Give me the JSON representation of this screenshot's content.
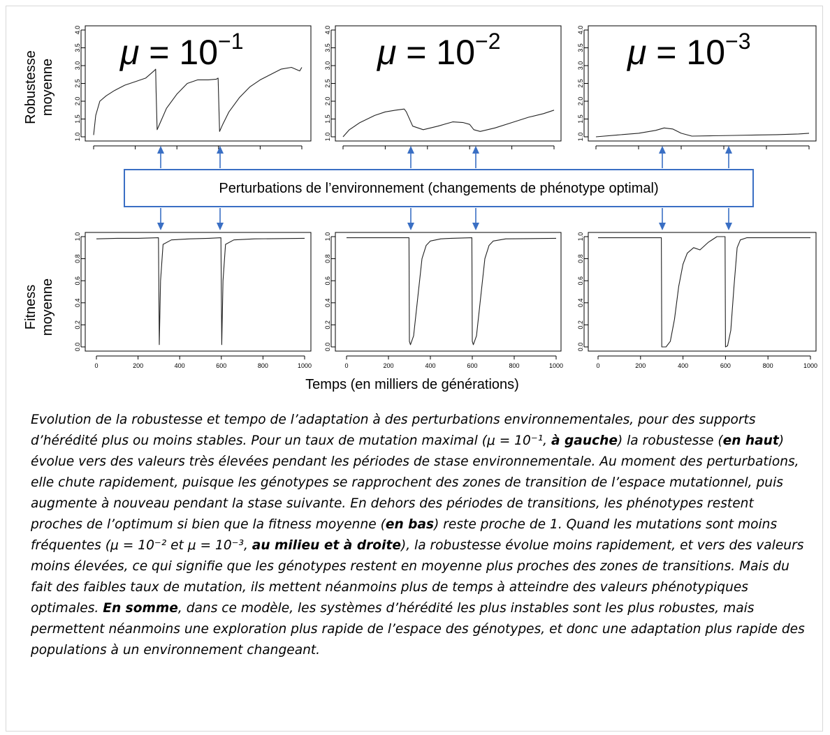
{
  "row_labels": {
    "top": [
      "Robustesse",
      "moyenne"
    ],
    "bottom": [
      "Fitness",
      "moyenne"
    ]
  },
  "perturbation_label": "Perturbations de l’environnement (changements de phénotype optimal)",
  "x_axis_label": "Temps (en milliers de générations)",
  "mu_labels": [
    {
      "base": "μ = 10",
      "exp": "−1"
    },
    {
      "base": "μ = 10",
      "exp": "−2"
    },
    {
      "base": "μ = 10",
      "exp": "−3"
    }
  ],
  "caption_segments": [
    {
      "text": "Evolution de la robustesse et tempo de l’adaptation à des perturbations environnementales, pour des supports d’hérédité plus ou moins stables. Pour un taux de mutation maximal (",
      "bold": false
    },
    {
      "text": "μ = 10⁻¹",
      "bold": false
    },
    {
      "text": ", ",
      "bold": false
    },
    {
      "text": "à gauche",
      "bold": true
    },
    {
      "text": ") la robustesse (",
      "bold": false
    },
    {
      "text": "en haut",
      "bold": true
    },
    {
      "text": ") évolue vers des valeurs très élevées pendant les périodes de stase environnementale. Au moment des perturbations, elle chute rapidement, puisque les génotypes se rapprochent des zones de transition de l’espace mutationnel, puis augmente à nouveau pendant la stase suivante. En dehors des périodes de transitions, les phénotypes restent proches de l’optimum si bien que la fitness moyenne (",
      "bold": false
    },
    {
      "text": "en bas",
      "bold": true
    },
    {
      "text": ") reste proche de 1. Quand les mutations sont moins fréquentes (",
      "bold": false
    },
    {
      "text": "μ = 10⁻²",
      "bold": false
    },
    {
      "text": " et ",
      "bold": false
    },
    {
      "text": "μ = 10⁻³",
      "bold": false
    },
    {
      "text": ", ",
      "bold": false
    },
    {
      "text": "au milieu et à droite",
      "bold": true
    },
    {
      "text": "), la robustesse évolue moins rapidement, et vers des valeurs moins élevées, ce qui signifie que les génotypes restent en moyenne plus proches des zones de transitions. Mais du fait des faibles taux de mutation, ils mettent néanmoins plus de temps à atteindre des valeurs phénotypiques optimales. ",
      "bold": false
    },
    {
      "text": "En somme",
      "bold": true
    },
    {
      "text": ", dans ce modèle, les systèmes d’hérédité les plus instables sont les plus robustes, mais permettent néanmoins une exploration plus rapide de l’espace des génotypes, et donc une adaptation plus rapide des populations à un environnement changeant.",
      "bold": false
    }
  ],
  "colors": {
    "line": "#222222",
    "arrow": "#3a6fc4",
    "box": "#3a6fc4"
  },
  "chart_data": [
    {
      "type": "line",
      "panel": "robustesse mu=10^-1",
      "xlim": [
        0,
        1000
      ],
      "ylim": [
        1.0,
        4.0
      ],
      "yticks": [
        "1.0",
        "1.5",
        "2.0",
        "2.5",
        "3.0",
        "3.5",
        "4.0"
      ],
      "x": [
        0,
        10,
        30,
        60,
        100,
        150,
        200,
        250,
        290,
        298,
        300,
        305,
        320,
        350,
        400,
        450,
        500,
        550,
        590,
        598,
        600,
        605,
        620,
        650,
        700,
        750,
        800,
        850,
        900,
        950,
        990,
        1000
      ],
      "y": [
        1.05,
        1.6,
        2.0,
        2.15,
        2.3,
        2.45,
        2.55,
        2.65,
        2.85,
        2.9,
        2.3,
        1.2,
        1.4,
        1.8,
        2.2,
        2.5,
        2.6,
        2.6,
        2.62,
        2.65,
        2.2,
        1.15,
        1.35,
        1.7,
        2.1,
        2.4,
        2.6,
        2.75,
        2.9,
        2.95,
        2.85,
        2.95
      ]
    },
    {
      "type": "line",
      "panel": "robustesse mu=10^-2",
      "xlim": [
        0,
        1000
      ],
      "ylim": [
        1.0,
        4.0
      ],
      "yticks": [
        "1.0",
        "1.5",
        "2.0",
        "2.5",
        "3.0",
        "3.5",
        "4.0"
      ],
      "x": [
        0,
        30,
        80,
        150,
        200,
        250,
        290,
        300,
        330,
        380,
        450,
        520,
        570,
        600,
        620,
        650,
        720,
        800,
        880,
        950,
        1000
      ],
      "y": [
        1.0,
        1.2,
        1.4,
        1.6,
        1.7,
        1.75,
        1.78,
        1.7,
        1.3,
        1.2,
        1.3,
        1.42,
        1.4,
        1.35,
        1.2,
        1.15,
        1.25,
        1.4,
        1.55,
        1.65,
        1.75
      ]
    },
    {
      "type": "line",
      "panel": "robustesse mu=10^-3",
      "xlim": [
        0,
        1000
      ],
      "ylim": [
        1.0,
        4.0
      ],
      "yticks": [
        "1.0",
        "1.5",
        "2.0",
        "2.5",
        "3.0",
        "3.5",
        "4.0"
      ],
      "x": [
        0,
        100,
        200,
        280,
        320,
        360,
        400,
        450,
        550,
        650,
        750,
        850,
        950,
        1000
      ],
      "y": [
        1.0,
        1.05,
        1.1,
        1.18,
        1.25,
        1.22,
        1.1,
        1.02,
        1.03,
        1.04,
        1.05,
        1.06,
        1.08,
        1.1
      ]
    },
    {
      "type": "line",
      "panel": "fitness mu=10^-1",
      "xlim": [
        0,
        1000
      ],
      "ylim": [
        0,
        1
      ],
      "xticks": [
        "0",
        "200",
        "400",
        "600",
        "800",
        "1000"
      ],
      "yticks": [
        "0.0",
        "0.2",
        "0.4",
        "0.6",
        "0.8",
        "1.0"
      ],
      "x": [
        0,
        100,
        200,
        298,
        300,
        302,
        308,
        320,
        360,
        450,
        540,
        598,
        600,
        602,
        608,
        620,
        660,
        760,
        1000
      ],
      "y": [
        0.98,
        0.985,
        0.985,
        0.99,
        0.5,
        0.02,
        0.6,
        0.93,
        0.97,
        0.98,
        0.985,
        0.99,
        0.5,
        0.02,
        0.6,
        0.93,
        0.97,
        0.98,
        0.985
      ]
    },
    {
      "type": "line",
      "panel": "fitness mu=10^-2",
      "xlim": [
        0,
        1000
      ],
      "ylim": [
        0,
        1
      ],
      "xticks": [
        "0",
        "200",
        "400",
        "600",
        "800",
        "1000"
      ],
      "yticks": [
        "0.0",
        "0.2",
        "0.4",
        "0.6",
        "0.8",
        "1.0"
      ],
      "x": [
        0,
        100,
        200,
        298,
        300,
        305,
        320,
        340,
        360,
        380,
        400,
        450,
        500,
        598,
        600,
        605,
        620,
        640,
        660,
        680,
        700,
        760,
        1000
      ],
      "y": [
        0.99,
        0.99,
        0.99,
        0.99,
        0.05,
        0.02,
        0.1,
        0.45,
        0.8,
        0.92,
        0.96,
        0.98,
        0.985,
        0.99,
        0.05,
        0.02,
        0.1,
        0.45,
        0.8,
        0.92,
        0.96,
        0.98,
        0.985
      ]
    },
    {
      "type": "line",
      "panel": "fitness mu=10^-3",
      "xlim": [
        0,
        1000
      ],
      "ylim": [
        0,
        1
      ],
      "xticks": [
        "0",
        "200",
        "400",
        "600",
        "800",
        "1000"
      ],
      "yticks": [
        "0.0",
        "0.2",
        "0.4",
        "0.6",
        "0.8",
        "1.0"
      ],
      "x": [
        0,
        100,
        200,
        298,
        300,
        320,
        340,
        360,
        380,
        400,
        420,
        450,
        480,
        520,
        560,
        598,
        600,
        610,
        625,
        640,
        655,
        670,
        700,
        760,
        1000
      ],
      "y": [
        0.99,
        0.99,
        0.99,
        0.99,
        0.0,
        0.0,
        0.05,
        0.25,
        0.55,
        0.75,
        0.85,
        0.9,
        0.88,
        0.95,
        1.0,
        1.0,
        0.0,
        0.01,
        0.15,
        0.55,
        0.9,
        0.97,
        0.99,
        0.99,
        0.99
      ]
    }
  ]
}
